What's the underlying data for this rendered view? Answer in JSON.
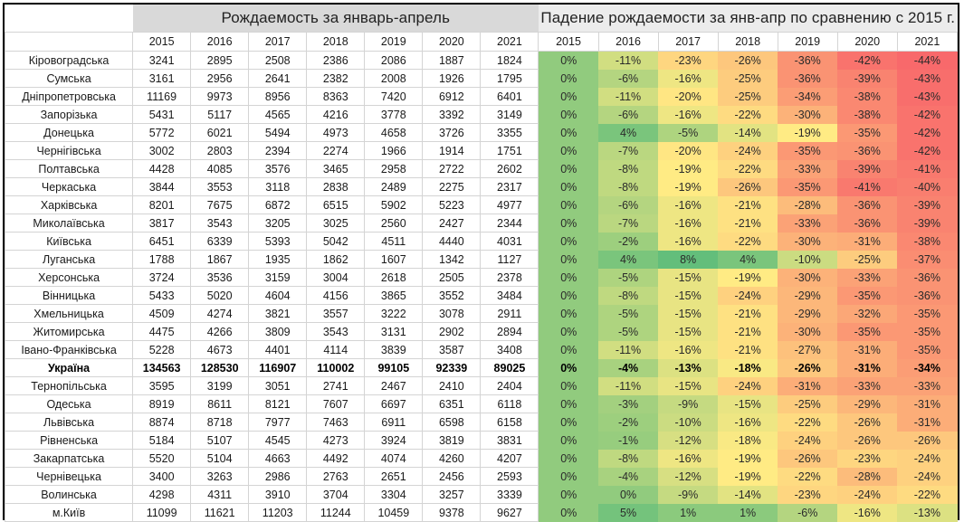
{
  "table": {
    "births_title": "Рождаемость за январь-апрель",
    "decline_title": "Падение рождаемости за янв-апр по сравнению с 2015 г.",
    "years": [
      "2015",
      "2016",
      "2017",
      "2018",
      "2019",
      "2020",
      "2021"
    ],
    "colors": {
      "red": "#f8696b",
      "yellow": "#ffeb84",
      "green": "#63be7b",
      "header_gray": "#d9d9d9",
      "header_light": "#ececec",
      "grid": "#d4d4d4"
    },
    "rows": [
      {
        "name": "Кіровоградська",
        "births": [
          "3241",
          "2895",
          "2508",
          "2386",
          "2086",
          "1887",
          "1824"
        ],
        "decline": [
          "0%",
          "-11%",
          "-23%",
          "-26%",
          "-36%",
          "-42%",
          "-44%"
        ]
      },
      {
        "name": "Сумська",
        "births": [
          "3161",
          "2956",
          "2641",
          "2382",
          "2008",
          "1926",
          "1795"
        ],
        "decline": [
          "0%",
          "-6%",
          "-16%",
          "-25%",
          "-36%",
          "-39%",
          "-43%"
        ]
      },
      {
        "name": "Дніпропетровська",
        "births": [
          "11169",
          "9973",
          "8956",
          "8363",
          "7420",
          "6912",
          "6401"
        ],
        "decline": [
          "0%",
          "-11%",
          "-20%",
          "-25%",
          "-34%",
          "-38%",
          "-43%"
        ]
      },
      {
        "name": "Запорізька",
        "births": [
          "5431",
          "5117",
          "4565",
          "4216",
          "3778",
          "3392",
          "3149"
        ],
        "decline": [
          "0%",
          "-6%",
          "-16%",
          "-22%",
          "-30%",
          "-38%",
          "-42%"
        ]
      },
      {
        "name": "Донецька",
        "births": [
          "5772",
          "6021",
          "5494",
          "4973",
          "4658",
          "3726",
          "3355"
        ],
        "decline": [
          "0%",
          "4%",
          "-5%",
          "-14%",
          "-19%",
          "-35%",
          "-42%"
        ]
      },
      {
        "name": "Чернігівська",
        "births": [
          "3002",
          "2803",
          "2394",
          "2274",
          "1966",
          "1914",
          "1751"
        ],
        "decline": [
          "0%",
          "-7%",
          "-20%",
          "-24%",
          "-35%",
          "-36%",
          "-42%"
        ]
      },
      {
        "name": "Полтавська",
        "births": [
          "4428",
          "4085",
          "3576",
          "3465",
          "2958",
          "2722",
          "2602"
        ],
        "decline": [
          "0%",
          "-8%",
          "-19%",
          "-22%",
          "-33%",
          "-39%",
          "-41%"
        ]
      },
      {
        "name": "Черкаська",
        "births": [
          "3844",
          "3553",
          "3118",
          "2838",
          "2489",
          "2275",
          "2317"
        ],
        "decline": [
          "0%",
          "-8%",
          "-19%",
          "-26%",
          "-35%",
          "-41%",
          "-40%"
        ]
      },
      {
        "name": "Харківська",
        "births": [
          "8201",
          "7675",
          "6872",
          "6515",
          "5902",
          "5223",
          "4977"
        ],
        "decline": [
          "0%",
          "-6%",
          "-16%",
          "-21%",
          "-28%",
          "-36%",
          "-39%"
        ]
      },
      {
        "name": "Миколаївська",
        "births": [
          "3817",
          "3543",
          "3205",
          "3025",
          "2560",
          "2427",
          "2344"
        ],
        "decline": [
          "0%",
          "-7%",
          "-16%",
          "-21%",
          "-33%",
          "-36%",
          "-39%"
        ]
      },
      {
        "name": "Київська",
        "births": [
          "6451",
          "6339",
          "5393",
          "5042",
          "4511",
          "4440",
          "4031"
        ],
        "decline": [
          "0%",
          "-2%",
          "-16%",
          "-22%",
          "-30%",
          "-31%",
          "-38%"
        ]
      },
      {
        "name": "Луганська",
        "births": [
          "1788",
          "1867",
          "1935",
          "1862",
          "1607",
          "1342",
          "1127"
        ],
        "decline": [
          "0%",
          "4%",
          "8%",
          "4%",
          "-10%",
          "-25%",
          "-37%"
        ]
      },
      {
        "name": "Херсонська",
        "births": [
          "3724",
          "3536",
          "3159",
          "3004",
          "2618",
          "2505",
          "2378"
        ],
        "decline": [
          "0%",
          "-5%",
          "-15%",
          "-19%",
          "-30%",
          "-33%",
          "-36%"
        ]
      },
      {
        "name": "Вінницька",
        "births": [
          "5433",
          "5020",
          "4604",
          "4156",
          "3865",
          "3552",
          "3484"
        ],
        "decline": [
          "0%",
          "-8%",
          "-15%",
          "-24%",
          "-29%",
          "-35%",
          "-36%"
        ]
      },
      {
        "name": "Хмельницька",
        "births": [
          "4509",
          "4274",
          "3821",
          "3557",
          "3222",
          "3078",
          "2911"
        ],
        "decline": [
          "0%",
          "-5%",
          "-15%",
          "-21%",
          "-29%",
          "-32%",
          "-35%"
        ]
      },
      {
        "name": "Житомирська",
        "births": [
          "4475",
          "4266",
          "3809",
          "3543",
          "3131",
          "2902",
          "2894"
        ],
        "decline": [
          "0%",
          "-5%",
          "-15%",
          "-21%",
          "-30%",
          "-35%",
          "-35%"
        ]
      },
      {
        "name": "Івано-Франківська",
        "births": [
          "5228",
          "4673",
          "4401",
          "4114",
          "3839",
          "3587",
          "3408"
        ],
        "decline": [
          "0%",
          "-11%",
          "-16%",
          "-21%",
          "-27%",
          "-31%",
          "-35%"
        ]
      },
      {
        "name": "Україна",
        "bold": true,
        "births": [
          "134563",
          "128530",
          "116907",
          "110002",
          "99105",
          "92339",
          "89025"
        ],
        "decline": [
          "0%",
          "-4%",
          "-13%",
          "-18%",
          "-26%",
          "-31%",
          "-34%"
        ]
      },
      {
        "name": "Тернопільська",
        "births": [
          "3595",
          "3199",
          "3051",
          "2741",
          "2467",
          "2410",
          "2404"
        ],
        "decline": [
          "0%",
          "-11%",
          "-15%",
          "-24%",
          "-31%",
          "-33%",
          "-33%"
        ]
      },
      {
        "name": "Одеська",
        "births": [
          "8919",
          "8611",
          "8121",
          "7607",
          "6697",
          "6351",
          "6118"
        ],
        "decline": [
          "0%",
          "-3%",
          "-9%",
          "-15%",
          "-25%",
          "-29%",
          "-31%"
        ]
      },
      {
        "name": "Львівська",
        "births": [
          "8874",
          "8718",
          "7977",
          "7463",
          "6911",
          "6598",
          "6158"
        ],
        "decline": [
          "0%",
          "-2%",
          "-10%",
          "-16%",
          "-22%",
          "-26%",
          "-31%"
        ]
      },
      {
        "name": "Рівненська",
        "births": [
          "5184",
          "5107",
          "4545",
          "4273",
          "3924",
          "3819",
          "3831"
        ],
        "decline": [
          "0%",
          "-1%",
          "-12%",
          "-18%",
          "-24%",
          "-26%",
          "-26%"
        ]
      },
      {
        "name": "Закарпатська",
        "births": [
          "5520",
          "5104",
          "4663",
          "4492",
          "4074",
          "4260",
          "4207"
        ],
        "decline": [
          "0%",
          "-8%",
          "-16%",
          "-19%",
          "-26%",
          "-23%",
          "-24%"
        ]
      },
      {
        "name": "Чернівецька",
        "births": [
          "3400",
          "3263",
          "2986",
          "2763",
          "2651",
          "2456",
          "2593"
        ],
        "decline": [
          "0%",
          "-4%",
          "-12%",
          "-19%",
          "-22%",
          "-28%",
          "-24%"
        ]
      },
      {
        "name": "Волинська",
        "births": [
          "4298",
          "4311",
          "3910",
          "3704",
          "3304",
          "3257",
          "3339"
        ],
        "decline": [
          "0%",
          "0%",
          "-9%",
          "-14%",
          "-23%",
          "-24%",
          "-22%"
        ]
      },
      {
        "name": "м.Київ",
        "births": [
          "11099",
          "11621",
          "11203",
          "11244",
          "10459",
          "9378",
          "9627"
        ],
        "decline": [
          "0%",
          "5%",
          "1%",
          "1%",
          "-6%",
          "-16%",
          "-13%"
        ]
      }
    ]
  }
}
